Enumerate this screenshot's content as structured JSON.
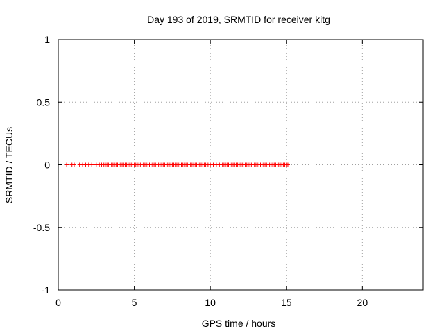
{
  "chart_data": {
    "type": "scatter",
    "title": "Day 193 of 2019, SRMTID for receiver kitg",
    "xlabel": "GPS time / hours",
    "ylabel": "SRMTID / TECUs",
    "xlim": [
      0,
      24
    ],
    "ylim": [
      -1,
      1
    ],
    "xticks": [
      0,
      5,
      10,
      15,
      20
    ],
    "xtick_labels": [
      "0",
      "5",
      "10",
      "15",
      "20"
    ],
    "yticks": [
      -1,
      -0.5,
      0,
      0.5,
      1
    ],
    "ytick_labels": [
      "-1",
      "-0.5",
      "0",
      "0.5",
      "1"
    ],
    "grid": true,
    "marker": "+",
    "series": [
      {
        "name": "SRMTID",
        "color": "#ff0000",
        "x": [
          0.55,
          0.9,
          1.05,
          1.4,
          1.6,
          1.8,
          2.0,
          2.2,
          2.5,
          2.7,
          2.85,
          3.0,
          3.1,
          3.2,
          3.3,
          3.4,
          3.5,
          3.6,
          3.7,
          3.8,
          3.9,
          4.0,
          4.1,
          4.2,
          4.3,
          4.4,
          4.5,
          4.6,
          4.7,
          4.8,
          4.9,
          5.0,
          5.1,
          5.2,
          5.3,
          5.4,
          5.5,
          5.6,
          5.7,
          5.8,
          5.9,
          6.0,
          6.1,
          6.2,
          6.3,
          6.4,
          6.5,
          6.6,
          6.7,
          6.8,
          6.9,
          7.0,
          7.1,
          7.2,
          7.3,
          7.4,
          7.5,
          7.6,
          7.7,
          7.8,
          7.9,
          8.0,
          8.1,
          8.2,
          8.3,
          8.4,
          8.5,
          8.6,
          8.7,
          8.8,
          8.9,
          9.0,
          9.1,
          9.2,
          9.3,
          9.4,
          9.5,
          9.6,
          9.7,
          9.85,
          10.0,
          10.2,
          10.4,
          10.6,
          10.8,
          10.9,
          11.0,
          11.1,
          11.2,
          11.3,
          11.4,
          11.5,
          11.6,
          11.7,
          11.8,
          11.9,
          12.0,
          12.1,
          12.2,
          12.3,
          12.4,
          12.5,
          12.6,
          12.7,
          12.8,
          12.9,
          13.0,
          13.1,
          13.2,
          13.3,
          13.4,
          13.5,
          13.6,
          13.7,
          13.8,
          13.9,
          14.0,
          14.1,
          14.2,
          14.3,
          14.4,
          14.5,
          14.6,
          14.7,
          14.8,
          14.9,
          15.0,
          15.1
        ],
        "y": [
          0,
          0,
          0,
          0,
          0,
          0,
          0,
          0,
          0,
          0,
          0,
          0,
          0,
          0,
          0,
          0,
          0,
          0,
          0,
          0,
          0,
          0,
          0,
          0,
          0,
          0,
          0,
          0,
          0,
          0,
          0,
          0,
          0,
          0,
          0,
          0,
          0,
          0,
          0,
          0,
          0,
          0,
          0,
          0,
          0,
          0,
          0,
          0,
          0,
          0,
          0,
          0,
          0,
          0,
          0,
          0,
          0,
          0,
          0,
          0,
          0,
          0,
          0,
          0,
          0,
          0,
          0,
          0,
          0,
          0,
          0,
          0,
          0,
          0,
          0,
          0,
          0,
          0,
          0,
          0,
          0,
          0,
          0,
          0,
          0,
          0,
          0,
          0,
          0,
          0,
          0,
          0,
          0,
          0,
          0,
          0,
          0,
          0,
          0,
          0,
          0,
          0,
          0,
          0,
          0,
          0,
          0,
          0,
          0,
          0,
          0,
          0,
          0,
          0,
          0,
          0,
          0,
          0,
          0,
          0,
          0,
          0,
          0,
          0,
          0,
          0,
          0,
          0
        ]
      }
    ]
  }
}
